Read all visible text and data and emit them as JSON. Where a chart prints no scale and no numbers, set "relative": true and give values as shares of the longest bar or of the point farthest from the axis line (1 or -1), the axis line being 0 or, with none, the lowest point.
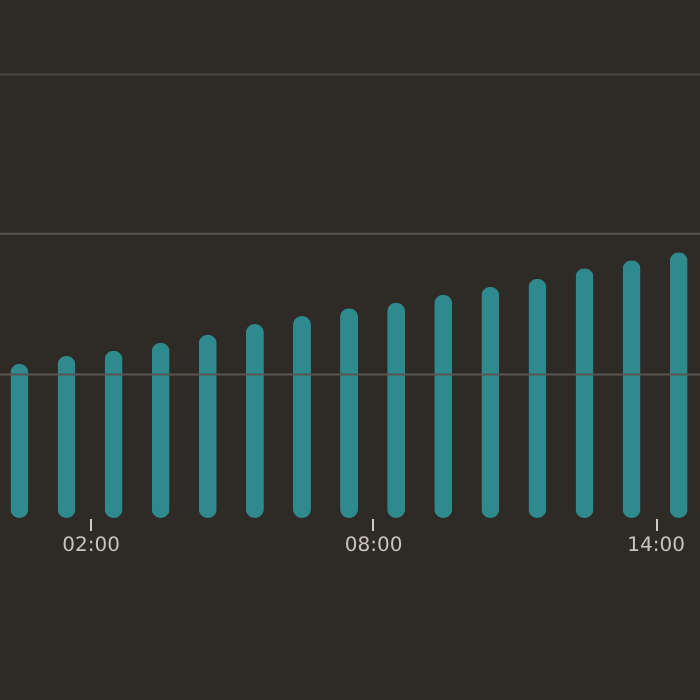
{
  "chart_data": {
    "type": "bar",
    "relative": true,
    "x": [
      0.5,
      1.5,
      2.5,
      3.5,
      4.5,
      5.5,
      6.5,
      7.5,
      8.5,
      9.5,
      10.5,
      11.5,
      12.5,
      13.5,
      14.5
    ],
    "values": [
      0.58,
      0.61,
      0.63,
      0.66,
      0.69,
      0.73,
      0.76,
      0.79,
      0.81,
      0.84,
      0.87,
      0.9,
      0.94,
      0.97,
      1
    ],
    "color": "#2e8a8c",
    "xlim": [
      0.3,
      14.74
    ],
    "xticks": [
      {
        "value": 2,
        "label": "02:00"
      },
      {
        "value": 8,
        "label": "08:00"
      },
      {
        "value": 14,
        "label": "14:00"
      }
    ],
    "ref_lines": [
      {
        "axis": "y",
        "value": 0.54,
        "color": "#5a5550"
      },
      {
        "axis": "y",
        "value": 1.07,
        "color": "#5a5550"
      },
      {
        "axis": "y",
        "value": 1.67,
        "color": "#4a4540"
      }
    ]
  }
}
